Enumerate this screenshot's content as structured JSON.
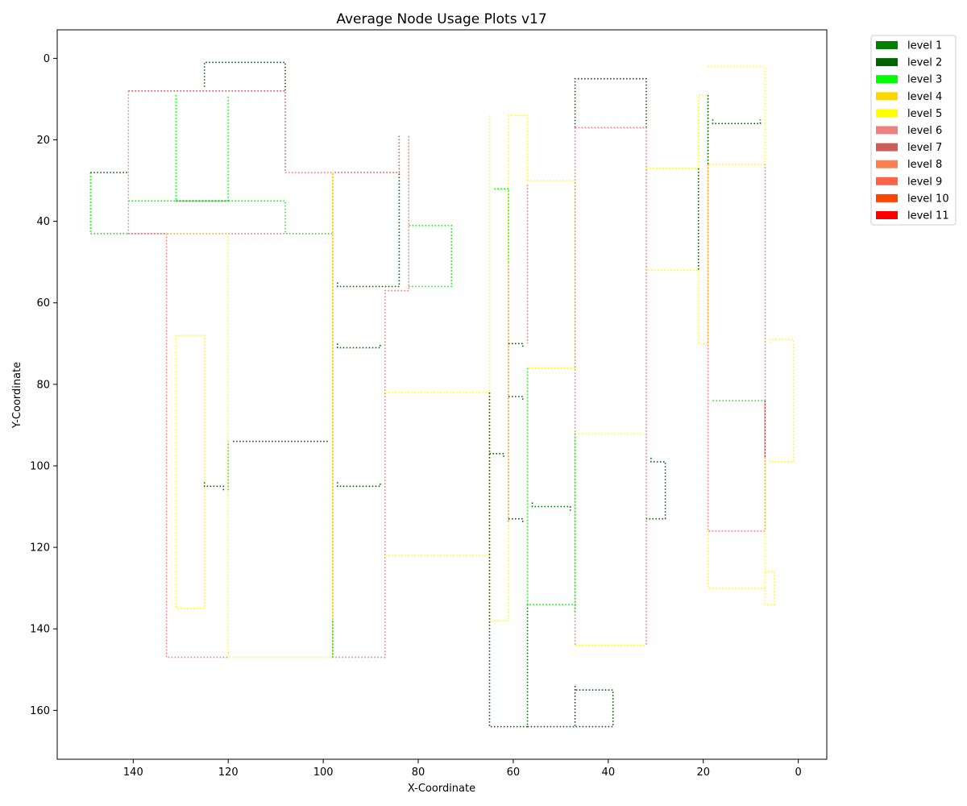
{
  "chart_data": {
    "type": "line",
    "title": "Average Node Usage Plots v17",
    "xlabel": "X-Coordinate",
    "ylabel": "Y-Coordinate",
    "xlim": [
      156,
      -6
    ],
    "ylim": [
      172,
      -7
    ],
    "x_ticks": [
      140,
      120,
      100,
      80,
      60,
      40,
      20,
      0
    ],
    "y_ticks": [
      0,
      20,
      40,
      60,
      80,
      100,
      120,
      140,
      160
    ],
    "grid": false,
    "line_style": "dotted",
    "legend_position": "outside-top-right",
    "legend": [
      {
        "name": "level 1",
        "color": "#008000"
      },
      {
        "name": "level 2",
        "color": "#006400"
      },
      {
        "name": "level 3",
        "color": "#00ff00"
      },
      {
        "name": "level 4",
        "color": "#ffd700"
      },
      {
        "name": "level 5",
        "color": "#ffff00"
      },
      {
        "name": "level 6",
        "color": "#f08080"
      },
      {
        "name": "level 7",
        "color": "#cd5c5c"
      },
      {
        "name": "level 8",
        "color": "#ff7f50"
      },
      {
        "name": "level 9",
        "color": "#ff6347"
      },
      {
        "name": "level 10",
        "color": "#ff4500"
      },
      {
        "name": "level 11",
        "color": "#ff0000"
      }
    ],
    "series": [
      {
        "color": "#006400",
        "points": [
          [
            125,
            7
          ],
          [
            125,
            1
          ],
          [
            108,
            1
          ],
          [
            108,
            8
          ]
        ]
      },
      {
        "color": "#cd5c5c",
        "points": [
          [
            141,
            8
          ],
          [
            108,
            8
          ],
          [
            108,
            28
          ]
        ]
      },
      {
        "color": "#f08080",
        "points": [
          [
            141,
            8
          ],
          [
            141,
            43
          ],
          [
            133,
            43
          ],
          [
            133,
            147
          ],
          [
            120,
            147
          ]
        ]
      },
      {
        "color": "#00ff00",
        "points": [
          [
            131,
            9
          ],
          [
            131,
            35
          ],
          [
            120,
            35
          ],
          [
            120,
            9
          ]
        ]
      },
      {
        "color": "#006400",
        "points": [
          [
            131,
            35
          ],
          [
            120,
            35
          ]
        ]
      },
      {
        "color": "#00ff00",
        "points": [
          [
            149,
            28
          ],
          [
            149,
            43
          ],
          [
            141,
            43
          ]
        ]
      },
      {
        "color": "#006400",
        "points": [
          [
            149,
            28
          ],
          [
            141,
            28
          ]
        ]
      },
      {
        "color": "#00ff00",
        "points": [
          [
            141,
            35
          ],
          [
            108,
            35
          ],
          [
            108,
            43
          ],
          [
            98,
            43
          ]
        ]
      },
      {
        "color": "#f08080",
        "points": [
          [
            141,
            43
          ],
          [
            108,
            43
          ]
        ]
      },
      {
        "color": "#ffff00",
        "points": [
          [
            133,
            43
          ],
          [
            120,
            43
          ],
          [
            120,
            147
          ],
          [
            98,
            147
          ]
        ]
      },
      {
        "color": "#ffff00",
        "points": [
          [
            131,
            68
          ],
          [
            131,
            135
          ],
          [
            125,
            135
          ],
          [
            125,
            68
          ],
          [
            131,
            68
          ]
        ]
      },
      {
        "color": "#006400",
        "points": [
          [
            125,
            104
          ],
          [
            125,
            105
          ],
          [
            121,
            105
          ],
          [
            121,
            106
          ]
        ]
      },
      {
        "color": "#00ff00",
        "points": [
          [
            120,
            106
          ],
          [
            120,
            94
          ]
        ]
      },
      {
        "color": "#006400",
        "points": [
          [
            119,
            94
          ],
          [
            99,
            94
          ]
        ]
      },
      {
        "color": "#f08080",
        "points": [
          [
            108,
            28
          ],
          [
            98,
            28
          ],
          [
            98,
            147
          ],
          [
            87,
            147
          ],
          [
            87,
            57
          ],
          [
            82,
            57
          ],
          [
            82,
            19
          ]
        ]
      },
      {
        "color": "#cd5c5c",
        "points": [
          [
            84,
            19
          ],
          [
            84,
            28
          ],
          [
            98,
            28
          ]
        ]
      },
      {
        "color": "#ffff00",
        "points": [
          [
            98,
            28
          ],
          [
            98,
            147
          ]
        ]
      },
      {
        "color": "#00ff00",
        "points": [
          [
            98,
            138
          ],
          [
            98,
            147
          ]
        ]
      },
      {
        "color": "#006400",
        "points": [
          [
            97,
            55
          ],
          [
            97,
            56
          ],
          [
            84,
            56
          ],
          [
            84,
            28
          ]
        ]
      },
      {
        "color": "#00ff00",
        "points": [
          [
            82,
            56
          ],
          [
            73,
            56
          ],
          [
            73,
            41
          ],
          [
            82,
            41
          ]
        ]
      },
      {
        "color": "#006400",
        "points": [
          [
            97,
            70
          ],
          [
            97,
            71
          ],
          [
            88,
            71
          ],
          [
            88,
            70
          ]
        ]
      },
      {
        "color": "#006400",
        "points": [
          [
            97,
            104
          ],
          [
            97,
            105
          ],
          [
            88,
            105
          ],
          [
            88,
            104
          ]
        ]
      },
      {
        "color": "#ffff00",
        "points": [
          [
            87,
            82
          ],
          [
            65,
            82
          ]
        ]
      },
      {
        "color": "#ffff00",
        "points": [
          [
            87,
            122
          ],
          [
            65,
            122
          ]
        ]
      },
      {
        "color": "#ffff00",
        "points": [
          [
            65,
            14
          ],
          [
            65,
            138
          ],
          [
            61,
            138
          ],
          [
            61,
            14
          ],
          [
            57,
            14
          ],
          [
            57,
            30
          ]
        ]
      },
      {
        "color": "#006400",
        "points": [
          [
            65,
            82
          ],
          [
            65,
            164
          ],
          [
            57,
            164
          ],
          [
            57,
            134
          ]
        ]
      },
      {
        "color": "#00ff00",
        "points": [
          [
            64,
            32
          ],
          [
            61,
            32
          ],
          [
            61,
            50
          ]
        ]
      },
      {
        "color": "#f08080",
        "points": [
          [
            61,
            50
          ],
          [
            61,
            114
          ]
        ]
      },
      {
        "color": "#006400",
        "points": [
          [
            65,
            97
          ],
          [
            62,
            97
          ],
          [
            62,
            98
          ]
        ]
      },
      {
        "color": "#006400",
        "points": [
          [
            61,
            70
          ],
          [
            58,
            70
          ],
          [
            58,
            71
          ]
        ]
      },
      {
        "color": "#006400",
        "points": [
          [
            61,
            83
          ],
          [
            58,
            83
          ],
          [
            58,
            84
          ]
        ]
      },
      {
        "color": "#006400",
        "points": [
          [
            61,
            113
          ],
          [
            58,
            113
          ],
          [
            58,
            114
          ]
        ]
      },
      {
        "color": "#f08080",
        "points": [
          [
            57,
            31
          ],
          [
            57,
            70
          ]
        ]
      },
      {
        "color": "#ffff00",
        "points": [
          [
            57,
            30
          ],
          [
            47,
            30
          ],
          [
            47,
            76
          ],
          [
            57,
            76
          ]
        ]
      },
      {
        "color": "#00ff00",
        "points": [
          [
            57,
            76
          ],
          [
            57,
            134
          ],
          [
            47,
            134
          ],
          [
            47,
            136
          ]
        ]
      },
      {
        "color": "#006400",
        "points": [
          [
            56,
            109
          ],
          [
            56,
            110
          ],
          [
            48,
            110
          ],
          [
            48,
            111
          ]
        ]
      },
      {
        "color": "#006400",
        "points": [
          [
            57,
            164
          ],
          [
            39,
            164
          ],
          [
            39,
            155
          ],
          [
            47,
            155
          ]
        ]
      },
      {
        "color": "#006400",
        "points": [
          [
            47,
            154
          ],
          [
            47,
            164
          ]
        ]
      },
      {
        "color": "#006400",
        "points": [
          [
            47,
            17
          ],
          [
            47,
            5
          ],
          [
            32,
            5
          ],
          [
            32,
            17
          ]
        ]
      },
      {
        "color": "#f08080",
        "points": [
          [
            47,
            17
          ],
          [
            32,
            17
          ],
          [
            32,
            144
          ]
        ]
      },
      {
        "color": "#f08080",
        "points": [
          [
            47,
            17
          ],
          [
            47,
            144
          ]
        ]
      },
      {
        "color": "#00ff00",
        "points": [
          [
            47,
            92
          ],
          [
            47,
            136
          ]
        ]
      },
      {
        "color": "#ffff00",
        "points": [
          [
            47,
            92
          ],
          [
            32,
            92
          ]
        ]
      },
      {
        "color": "#ffff00",
        "points": [
          [
            47,
            144
          ],
          [
            32,
            144
          ]
        ]
      },
      {
        "color": "#006400",
        "points": [
          [
            31,
            98
          ],
          [
            31,
            99
          ],
          [
            28,
            99
          ],
          [
            28,
            113
          ],
          [
            32,
            113
          ]
        ]
      },
      {
        "color": "#ffff00",
        "points": [
          [
            32,
            27
          ],
          [
            21,
            27
          ],
          [
            21,
            9
          ],
          [
            19,
            9
          ],
          [
            19,
            70
          ],
          [
            21,
            70
          ],
          [
            21,
            52
          ],
          [
            32,
            52
          ]
        ]
      },
      {
        "color": "#006400",
        "points": [
          [
            21,
            27
          ],
          [
            21,
            52
          ]
        ]
      },
      {
        "color": "#006400",
        "points": [
          [
            19,
            9
          ],
          [
            19,
            26
          ]
        ]
      },
      {
        "color": "#006400",
        "points": [
          [
            18,
            15
          ],
          [
            18,
            16
          ],
          [
            8,
            16
          ],
          [
            8,
            15
          ]
        ]
      },
      {
        "color": "#ffff00",
        "points": [
          [
            19,
            2
          ],
          [
            7,
            2
          ],
          [
            7,
            26
          ],
          [
            19,
            26
          ]
        ]
      },
      {
        "color": "#f08080",
        "points": [
          [
            19,
            26
          ],
          [
            19,
            116
          ],
          [
            7,
            116
          ],
          [
            7,
            26
          ]
        ]
      },
      {
        "color": "#00ff00",
        "points": [
          [
            18,
            84
          ],
          [
            7,
            84
          ]
        ]
      },
      {
        "color": "#ff0000",
        "points": [
          [
            7,
            84
          ],
          [
            7,
            98
          ]
        ]
      },
      {
        "color": "#ffff00",
        "points": [
          [
            19,
            116
          ],
          [
            19,
            130
          ],
          [
            7,
            130
          ],
          [
            7,
            98
          ]
        ]
      },
      {
        "color": "#ffff00",
        "points": [
          [
            7,
            126
          ],
          [
            5,
            126
          ],
          [
            5,
            134
          ],
          [
            7,
            134
          ],
          [
            7,
            130
          ]
        ]
      },
      {
        "color": "#ffff00",
        "points": [
          [
            6,
            70
          ],
          [
            6,
            69
          ],
          [
            1,
            69
          ],
          [
            1,
            99
          ],
          [
            6,
            99
          ],
          [
            6,
            98
          ]
        ]
      }
    ]
  }
}
